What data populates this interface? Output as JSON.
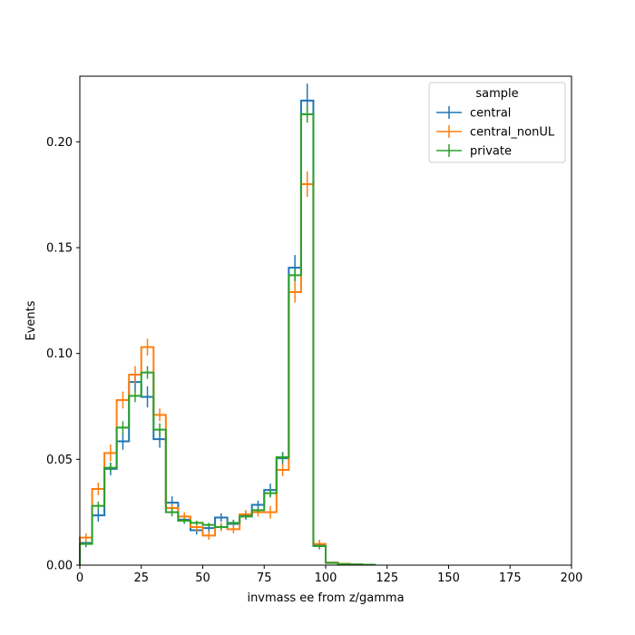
{
  "chart_data": {
    "type": "step-histogram",
    "title": "",
    "xlabel": "invmass ee from z/gamma",
    "ylabel": "Events",
    "xlim": [
      0,
      200
    ],
    "ylim": [
      0,
      0.231
    ],
    "grid": false,
    "legend": {
      "title": "sample",
      "placement": "top-right"
    },
    "x_ticks": [
      0,
      25,
      50,
      75,
      100,
      125,
      150,
      175,
      200
    ],
    "x_tick_labels": [
      "0",
      "25",
      "50",
      "75",
      "100",
      "125",
      "150",
      "175",
      "200"
    ],
    "y_ticks": [
      0,
      0.05,
      0.1,
      0.15,
      0.2
    ],
    "y_tick_labels": [
      "0.00",
      "0.05",
      "0.10",
      "0.15",
      "0.20"
    ],
    "bin_edges": [
      0,
      5,
      10,
      15,
      20,
      25,
      30,
      35,
      40,
      45,
      50,
      55,
      60,
      65,
      70,
      75,
      80,
      85,
      90,
      95,
      100,
      105,
      110,
      115,
      120
    ],
    "series": [
      {
        "name": "central",
        "color": "#1f77b4",
        "values": [
          0.0105,
          0.0235,
          0.0455,
          0.0585,
          0.0865,
          0.0795,
          0.0595,
          0.0295,
          0.0215,
          0.0165,
          0.0175,
          0.0225,
          0.0195,
          0.0235,
          0.0285,
          0.0355,
          0.0505,
          0.1405,
          0.2195,
          0.0095,
          0.0012,
          0.0006,
          0.0003,
          0.0002
        ],
        "errors": [
          0.002,
          0.003,
          0.003,
          0.004,
          0.004,
          0.005,
          0.004,
          0.003,
          0.002,
          0.002,
          0.002,
          0.002,
          0.002,
          0.002,
          0.002,
          0.003,
          0.003,
          0.006,
          0.008,
          0.002,
          0.0005,
          0.0003,
          0.0002,
          0.0001
        ]
      },
      {
        "name": "central_nonUL",
        "color": "#ff7f0e",
        "values": [
          0.013,
          0.036,
          0.053,
          0.078,
          0.09,
          0.103,
          0.071,
          0.027,
          0.023,
          0.018,
          0.014,
          0.018,
          0.017,
          0.024,
          0.025,
          0.025,
          0.045,
          0.129,
          0.18,
          0.01,
          0.0012,
          0.0006,
          0.0003,
          0.0002
        ],
        "errors": [
          0.002,
          0.003,
          0.004,
          0.004,
          0.004,
          0.004,
          0.003,
          0.002,
          0.002,
          0.002,
          0.002,
          0.002,
          0.002,
          0.002,
          0.002,
          0.003,
          0.003,
          0.005,
          0.006,
          0.002,
          0.0005,
          0.0003,
          0.0002,
          0.0001
        ]
      },
      {
        "name": "private",
        "color": "#2ca02c",
        "values": [
          0.01,
          0.028,
          0.046,
          0.065,
          0.08,
          0.091,
          0.064,
          0.025,
          0.021,
          0.02,
          0.019,
          0.018,
          0.02,
          0.023,
          0.026,
          0.034,
          0.051,
          0.137,
          0.213,
          0.009,
          0.001,
          0.0005,
          0.0003,
          0.0002
        ],
        "errors": [
          0.001,
          0.002,
          0.002,
          0.003,
          0.003,
          0.003,
          0.003,
          0.002,
          0.001,
          0.001,
          0.001,
          0.001,
          0.001,
          0.001,
          0.001,
          0.002,
          0.002,
          0.003,
          0.004,
          0.001,
          0.0003,
          0.0002,
          0.0001,
          0.0001
        ]
      }
    ]
  }
}
